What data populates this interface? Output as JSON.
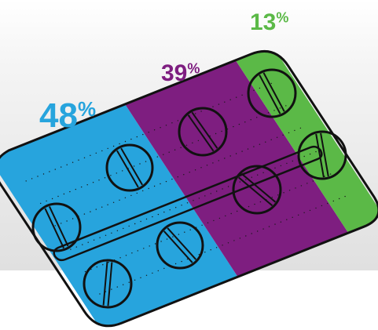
{
  "chart_data": {
    "type": "pie",
    "categories": [
      "",
      "",
      ""
    ],
    "values": [
      48,
      39,
      13
    ],
    "labels": [
      "48",
      "39",
      "13"
    ],
    "unit": "%",
    "colors": [
      "#27A4DD",
      "#7E1E80",
      "#5BB947"
    ]
  }
}
